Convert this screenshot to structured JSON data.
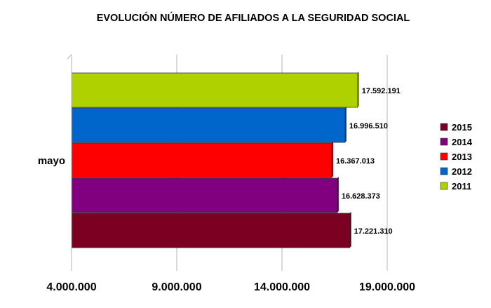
{
  "chart_data": {
    "type": "bar",
    "orientation": "horizontal",
    "title": "EVOLUCIÓN NÚMERO DE AFILIADOS A LA SEGURIDAD SOCIAL",
    "categories": [
      "mayo"
    ],
    "series": [
      {
        "name": "2011",
        "values": [
          17592191
        ],
        "label": "17.592.191",
        "color": "#b0d100"
      },
      {
        "name": "2012",
        "values": [
          16996510
        ],
        "label": "16.996.510",
        "color": "#0066cc"
      },
      {
        "name": "2013",
        "values": [
          16367013
        ],
        "label": "16.367.013",
        "color": "#ff0000"
      },
      {
        "name": "2014",
        "values": [
          16628373
        ],
        "label": "16.628.373",
        "color": "#800080"
      },
      {
        "name": "2015",
        "values": [
          17221310
        ],
        "label": "17.221.310",
        "color": "#7b0022"
      }
    ],
    "legend_order": [
      "2015",
      "2014",
      "2013",
      "2012",
      "2011"
    ],
    "xlim": [
      4000000,
      19000000
    ],
    "xticks": [
      4000000,
      9000000,
      14000000,
      19000000
    ],
    "xtick_labels": [
      "4.000.000",
      "9.000.000",
      "14.000.000",
      "19.000.000"
    ],
    "grid": true,
    "legend_position": "right"
  }
}
